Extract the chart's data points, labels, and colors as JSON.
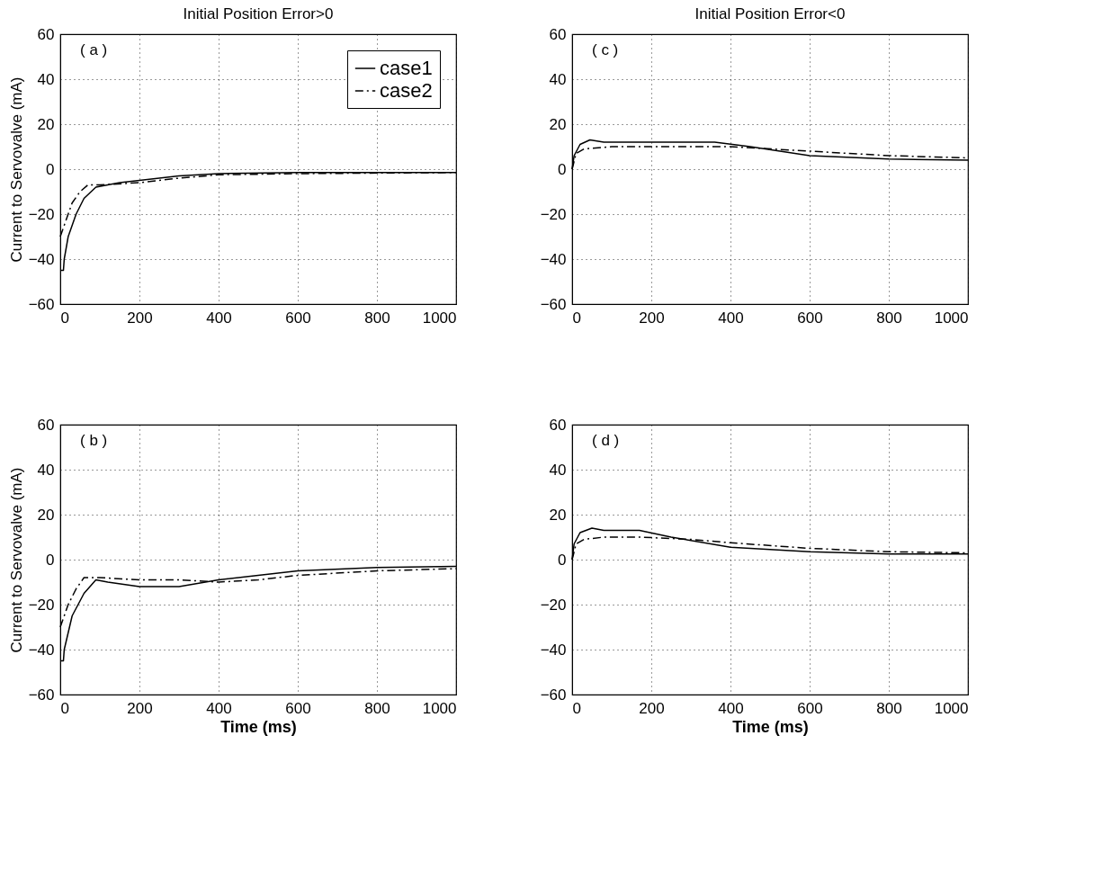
{
  "chart_data": [
    {
      "type": "line",
      "title": "Initial Position Error>0",
      "ylabel": "Current to Servovalve (mA)",
      "annotations": [
        "( a )"
      ],
      "xlim": [
        0,
        1000
      ],
      "ylim": [
        -60,
        60
      ],
      "xticks": [
        0,
        200,
        400,
        600,
        800,
        1000
      ],
      "yticks": [
        -60,
        -40,
        -20,
        0,
        20,
        40,
        60
      ],
      "grid": true,
      "legend": "top right",
      "series": [
        {
          "name": "case1",
          "color": "#000000",
          "line_style": "solid",
          "x": [
            0,
            8,
            10,
            20,
            40,
            60,
            90,
            150,
            200,
            300,
            400,
            600,
            1000
          ],
          "values": [
            -45,
            -45,
            -40,
            -30,
            -20,
            -13,
            -8,
            -6,
            -5,
            -3,
            -2,
            -1.5,
            -1.5
          ]
        },
        {
          "name": "case2",
          "color": "#000000",
          "line_style": "dashed",
          "x": [
            0,
            10,
            30,
            50,
            70,
            100,
            200,
            300,
            400,
            600,
            1000
          ],
          "values": [
            -30,
            -25,
            -15,
            -10,
            -7,
            -7,
            -6,
            -4,
            -2.5,
            -2,
            -1.5
          ]
        }
      ]
    },
    {
      "type": "line",
      "title": "Initial Position Error<0",
      "annotations": [
        "( c )"
      ],
      "xlim": [
        0,
        1000
      ],
      "ylim": [
        -60,
        60
      ],
      "xticks": [
        0,
        200,
        400,
        600,
        800,
        1000
      ],
      "yticks": [
        -60,
        -40,
        -20,
        0,
        20,
        40,
        60
      ],
      "grid": true,
      "series": [
        {
          "name": "case1",
          "color": "#000000",
          "line_style": "solid",
          "x": [
            0,
            5,
            20,
            45,
            80,
            200,
            360,
            450,
            600,
            800,
            1000
          ],
          "values": [
            0,
            6,
            11,
            13,
            12,
            12,
            12,
            10,
            6,
            4.5,
            4
          ]
        },
        {
          "name": "case2",
          "color": "#000000",
          "line_style": "dashed",
          "x": [
            0,
            10,
            30,
            100,
            300,
            400,
            600,
            800,
            1000
          ],
          "values": [
            0,
            7,
            9,
            10,
            10,
            10,
            8,
            6,
            5
          ]
        }
      ]
    },
    {
      "type": "line",
      "xlabel": "Time (ms)",
      "ylabel": "Current to Servovalve (mA)",
      "annotations": [
        "( b )"
      ],
      "xlim": [
        0,
        1000
      ],
      "ylim": [
        -60,
        60
      ],
      "xticks": [
        0,
        200,
        400,
        600,
        800,
        1000
      ],
      "yticks": [
        -60,
        -40,
        -20,
        0,
        20,
        40,
        60
      ],
      "grid": true,
      "series": [
        {
          "name": "case1",
          "color": "#000000",
          "line_style": "solid",
          "x": [
            0,
            8,
            10,
            30,
            60,
            90,
            120,
            200,
            300,
            400,
            500,
            600,
            800,
            1000
          ],
          "values": [
            -45,
            -45,
            -40,
            -25,
            -15,
            -9,
            -10,
            -12,
            -12,
            -9,
            -7,
            -5,
            -3.5,
            -3
          ]
        },
        {
          "name": "case2",
          "color": "#000000",
          "line_style": "dashed",
          "x": [
            0,
            20,
            40,
            60,
            100,
            200,
            300,
            400,
            500,
            600,
            800,
            1000
          ],
          "values": [
            -30,
            -20,
            -13,
            -8,
            -8,
            -9,
            -9,
            -10,
            -9,
            -7,
            -5,
            -4
          ]
        }
      ]
    },
    {
      "type": "line",
      "xlabel": "Time (ms)",
      "annotations": [
        "( d )"
      ],
      "xlim": [
        0,
        1000
      ],
      "ylim": [
        -60,
        60
      ],
      "xticks": [
        0,
        200,
        400,
        600,
        800,
        1000
      ],
      "yticks": [
        -60,
        -40,
        -20,
        0,
        20,
        40,
        60
      ],
      "grid": true,
      "series": [
        {
          "name": "case1",
          "color": "#000000",
          "line_style": "solid",
          "x": [
            0,
            5,
            20,
            50,
            80,
            170,
            250,
            400,
            600,
            800,
            1000
          ],
          "values": [
            0,
            7,
            12,
            14,
            13,
            13,
            10,
            5.5,
            3.5,
            2.5,
            2.5
          ]
        },
        {
          "name": "case2",
          "color": "#000000",
          "line_style": "dashed",
          "x": [
            0,
            10,
            30,
            80,
            170,
            300,
            400,
            600,
            800,
            1000
          ],
          "values": [
            0,
            7,
            9,
            10,
            10,
            9,
            7.5,
            5,
            3.5,
            3
          ]
        }
      ]
    }
  ]
}
